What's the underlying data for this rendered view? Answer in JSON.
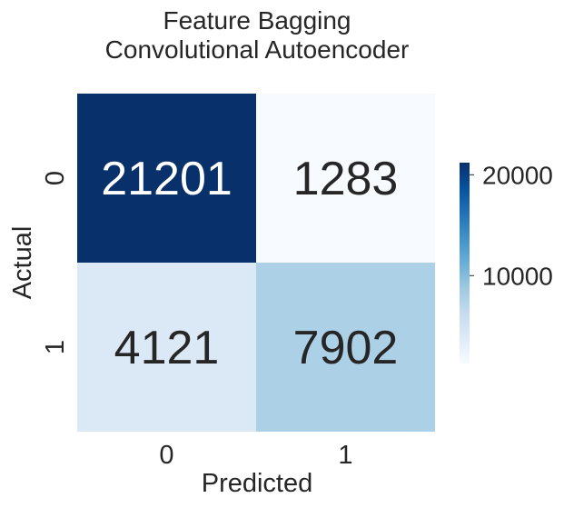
{
  "chart_data": {
    "type": "heatmap",
    "title_lines": [
      "Feature Bagging",
      "Convolutional Autoencoder"
    ],
    "xlabel": "Predicted",
    "ylabel": "Actual",
    "x_categories": [
      "0",
      "1"
    ],
    "y_categories": [
      "0",
      "1"
    ],
    "values": [
      [
        21201,
        1283
      ],
      [
        4121,
        7902
      ]
    ],
    "colormap": "Blues",
    "colorbar": {
      "min": 1283,
      "max": 21201,
      "ticks": [
        10000,
        20000
      ]
    },
    "grid": false
  }
}
